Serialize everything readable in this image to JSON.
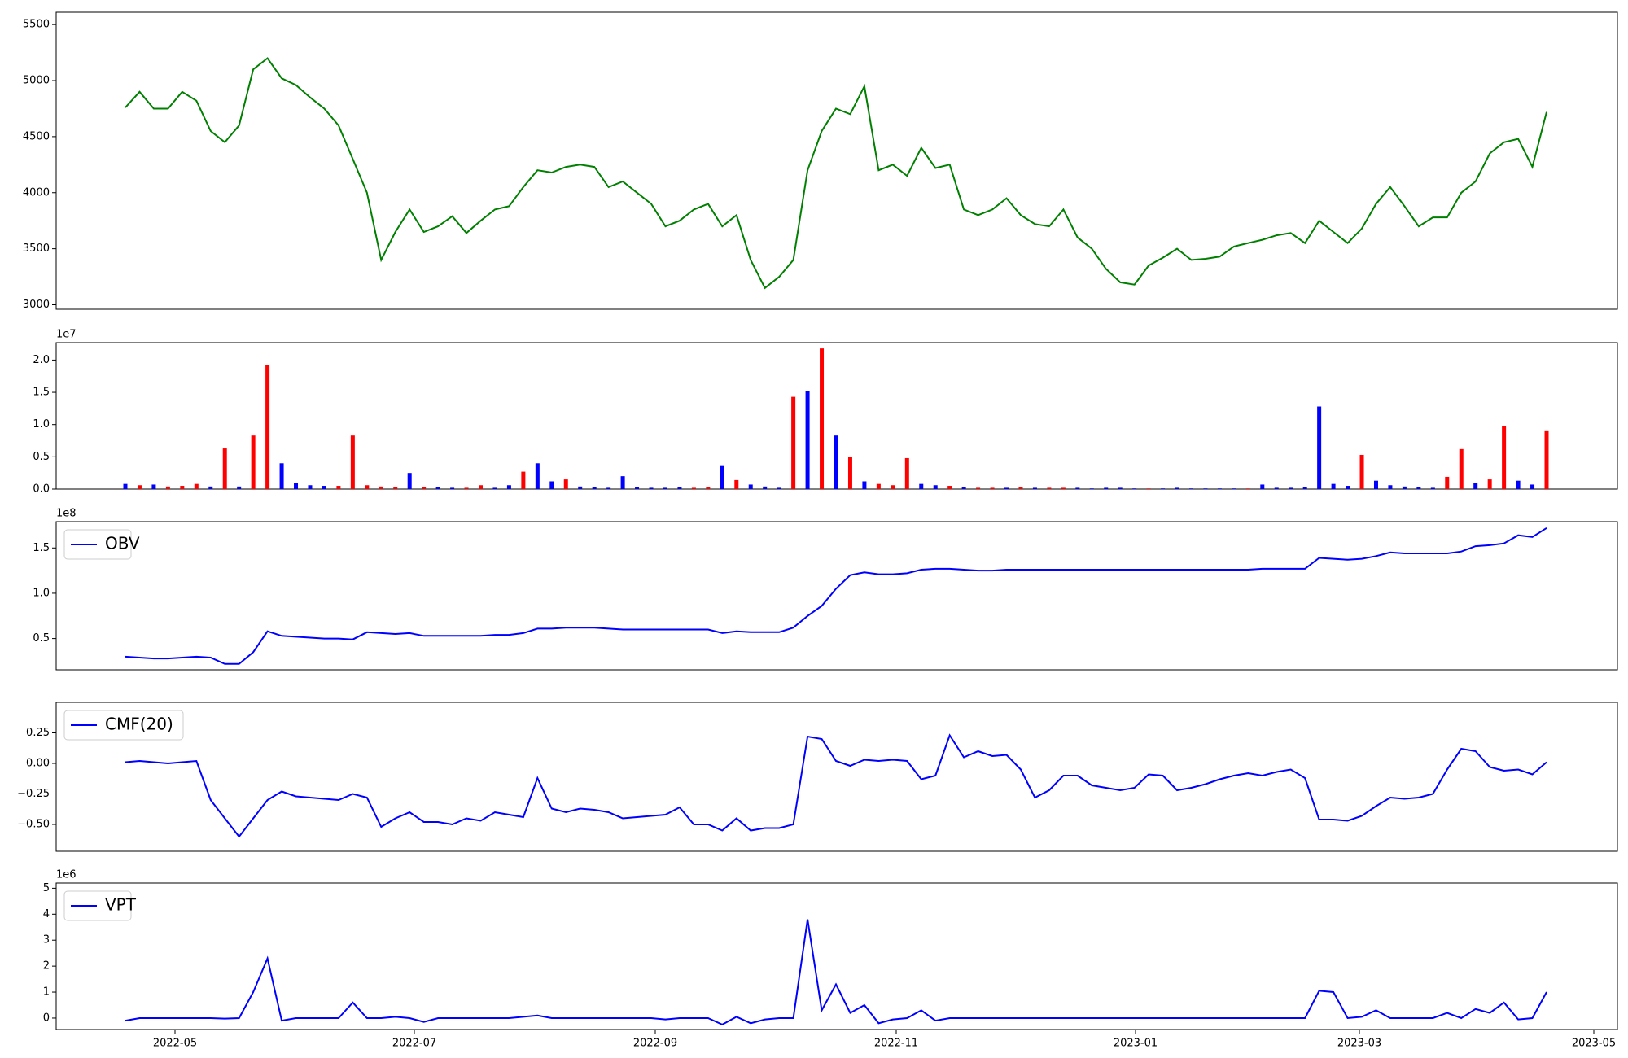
{
  "chart_data": [
    {
      "type": "line",
      "color": "#008000",
      "values": [
        4760,
        4900,
        4750,
        4750,
        4900,
        4820,
        4550,
        4450,
        4600,
        5100,
        5200,
        5020,
        4960,
        4850,
        4750,
        4600,
        4300,
        4000,
        3400,
        3650,
        3850,
        3650,
        3700,
        3790,
        3640,
        3750,
        3850,
        3880,
        4050,
        4200,
        4180,
        4230,
        4250,
        4230,
        4050,
        4100,
        4000,
        3900,
        3700,
        3750,
        3850,
        3900,
        3700,
        3800,
        3400,
        3150,
        3250,
        3400,
        4200,
        4550,
        4750,
        4700,
        4950,
        4200,
        4250,
        4150,
        4400,
        4220,
        4250,
        3850,
        3800,
        3850,
        3950,
        3800,
        3720,
        3700,
        3850,
        3600,
        3500,
        3320,
        3200,
        3180,
        3350,
        3420,
        3500,
        3400,
        3410,
        3430,
        3520,
        3550,
        3580,
        3620,
        3640,
        3550,
        3750,
        3650,
        3550,
        3680,
        3900,
        4050,
        3880,
        3700,
        3780,
        3780,
        4000,
        4100,
        4350,
        4450,
        4480,
        4230,
        4720
      ],
      "ylim": [
        2960,
        5610
      ],
      "yticks": [
        3000,
        3500,
        4000,
        4500,
        5000,
        5500
      ]
    },
    {
      "type": "bar",
      "y_offset_label": "1e7",
      "values": [
        0.08,
        0.06,
        0.07,
        0.04,
        0.05,
        0.08,
        0.04,
        0.63,
        0.04,
        0.83,
        1.92,
        0.4,
        0.1,
        0.06,
        0.05,
        0.05,
        0.83,
        0.06,
        0.04,
        0.03,
        0.25,
        0.03,
        0.03,
        0.02,
        0.02,
        0.06,
        0.02,
        0.06,
        0.27,
        0.4,
        0.12,
        0.15,
        0.04,
        0.03,
        0.02,
        0.2,
        0.03,
        0.02,
        0.02,
        0.03,
        0.02,
        0.03,
        0.37,
        0.14,
        0.07,
        0.04,
        0.02,
        1.43,
        1.52,
        2.18,
        0.83,
        0.5,
        0.12,
        0.08,
        0.06,
        0.48,
        0.08,
        0.06,
        0.05,
        0.03,
        0.02,
        0.02,
        0.02,
        0.03,
        0.02,
        0.02,
        0.02,
        0.02,
        0.01,
        0.02,
        0.02,
        0.01,
        0.01,
        0.01,
        0.02,
        0.01,
        0.01,
        0.01,
        0.01,
        0.01,
        0.07,
        0.02,
        0.02,
        0.03,
        1.28,
        0.08,
        0.05,
        0.53,
        0.13,
        0.06,
        0.04,
        0.03,
        0.02,
        0.19,
        0.62,
        0.1,
        0.15,
        0.98,
        0.13,
        0.07,
        0.91
      ],
      "colors": [
        "blue",
        "red",
        "blue",
        "red",
        "red",
        "red",
        "blue",
        "red",
        "blue",
        "red",
        "red",
        "blue",
        "blue",
        "blue",
        "blue",
        "red",
        "red",
        "red",
        "red",
        "red",
        "blue",
        "red",
        "blue",
        "blue",
        "red",
        "red",
        "blue",
        "blue",
        "red",
        "blue",
        "blue",
        "red",
        "blue",
        "blue",
        "blue",
        "blue",
        "blue",
        "blue",
        "blue",
        "blue",
        "red",
        "red",
        "blue",
        "red",
        "blue",
        "blue",
        "blue",
        "red",
        "blue",
        "red",
        "blue",
        "red",
        "blue",
        "red",
        "red",
        "red",
        "blue",
        "blue",
        "red",
        "blue",
        "red",
        "red",
        "blue",
        "red",
        "blue",
        "red",
        "red",
        "blue",
        "blue",
        "blue",
        "blue",
        "blue",
        "red",
        "blue",
        "blue",
        "blue",
        "blue",
        "blue",
        "blue",
        "red",
        "blue",
        "blue",
        "blue",
        "blue",
        "blue",
        "blue",
        "blue",
        "red",
        "blue",
        "blue",
        "blue",
        "blue",
        "blue",
        "red",
        "red",
        "blue",
        "red",
        "red",
        "blue",
        "blue",
        "red"
      ],
      "ylim": [
        0,
        2.27
      ],
      "yticks": [
        {
          "value": 0,
          "label": "0.0"
        },
        0.5,
        {
          "value": 1,
          "label": "1.0"
        },
        1.5,
        {
          "value": 2,
          "label": "2.0"
        }
      ]
    },
    {
      "type": "line",
      "y_offset_label": "1e8",
      "legend": "upper left",
      "series": [
        {
          "name": "OBV",
          "color": "blue",
          "values": [
            0.3,
            0.29,
            0.28,
            0.28,
            0.29,
            0.3,
            0.29,
            0.22,
            0.22,
            0.35,
            0.58,
            0.53,
            0.52,
            0.51,
            0.5,
            0.5,
            0.49,
            0.57,
            0.56,
            0.55,
            0.56,
            0.53,
            0.53,
            0.53,
            0.53,
            0.53,
            0.54,
            0.54,
            0.56,
            0.61,
            0.61,
            0.62,
            0.62,
            0.62,
            0.61,
            0.6,
            0.6,
            0.6,
            0.6,
            0.6,
            0.6,
            0.6,
            0.56,
            0.58,
            0.57,
            0.57,
            0.57,
            0.62,
            0.75,
            0.86,
            1.05,
            1.2,
            1.23,
            1.21,
            1.21,
            1.22,
            1.26,
            1.27,
            1.27,
            1.26,
            1.25,
            1.25,
            1.26,
            1.26,
            1.26,
            1.26,
            1.26,
            1.26,
            1.26,
            1.26,
            1.26,
            1.26,
            1.26,
            1.26,
            1.26,
            1.26,
            1.26,
            1.26,
            1.26,
            1.26,
            1.27,
            1.27,
            1.27,
            1.27,
            1.39,
            1.38,
            1.37,
            1.38,
            1.41,
            1.45,
            1.44,
            1.44,
            1.44,
            1.44,
            1.46,
            1.52,
            1.53,
            1.55,
            1.64,
            1.62,
            1.72
          ]
        }
      ],
      "ylim": [
        0.155,
        1.79
      ],
      "yticks": [
        0.5,
        {
          "value": 1,
          "label": "1.0"
        },
        1.5
      ]
    },
    {
      "type": "line",
      "legend": "upper left",
      "series": [
        {
          "name": "CMF(20)",
          "color": "blue",
          "values": [
            0.01,
            0.02,
            0.01,
            0.0,
            0.01,
            0.02,
            -0.3,
            -0.45,
            -0.6,
            -0.45,
            -0.3,
            -0.23,
            -0.27,
            -0.28,
            -0.29,
            -0.3,
            -0.25,
            -0.28,
            -0.52,
            -0.45,
            -0.4,
            -0.48,
            -0.48,
            -0.5,
            -0.45,
            -0.47,
            -0.4,
            -0.42,
            -0.44,
            -0.12,
            -0.37,
            -0.4,
            -0.37,
            -0.38,
            -0.4,
            -0.45,
            -0.44,
            -0.43,
            -0.42,
            -0.36,
            -0.5,
            -0.5,
            -0.55,
            -0.45,
            -0.55,
            -0.53,
            -0.53,
            -0.5,
            0.22,
            0.2,
            0.02,
            -0.02,
            0.03,
            0.02,
            0.03,
            0.02,
            -0.13,
            -0.1,
            0.23,
            0.05,
            0.1,
            0.06,
            0.07,
            -0.05,
            -0.28,
            -0.22,
            -0.1,
            -0.1,
            -0.18,
            -0.2,
            -0.22,
            -0.2,
            -0.09,
            -0.1,
            -0.22,
            -0.2,
            -0.17,
            -0.13,
            -0.1,
            -0.08,
            -0.1,
            -0.07,
            -0.05,
            -0.12,
            -0.46,
            -0.46,
            -0.47,
            -0.43,
            -0.35,
            -0.28,
            -0.29,
            -0.28,
            -0.25,
            -0.05,
            0.12,
            0.1,
            -0.03,
            -0.06,
            -0.05,
            -0.09,
            0.01
          ]
        }
      ],
      "ylim": [
        -0.72,
        0.5
      ],
      "yticks": [
        {
          "value": -0.5,
          "label": "−0.50"
        },
        {
          "value": -0.25,
          "label": "−0.25"
        },
        {
          "value": 0,
          "label": "0.00"
        },
        0.25
      ]
    },
    {
      "type": "line",
      "y_offset_label": "1e6",
      "legend": "upper left",
      "series": [
        {
          "name": "VPT",
          "color": "blue",
          "values": [
            -0.1,
            0.0,
            0.0,
            0.0,
            0.0,
            0.0,
            0.0,
            -0.02,
            0.0,
            1.0,
            2.3,
            -0.1,
            0.0,
            0.0,
            0.0,
            0.0,
            0.6,
            0.0,
            0.0,
            0.05,
            0.0,
            -0.15,
            0.0,
            0.0,
            0.0,
            0.0,
            0.0,
            0.0,
            0.05,
            0.1,
            0.0,
            0.0,
            0.0,
            0.0,
            0.0,
            0.0,
            0.0,
            0.0,
            -0.05,
            0.0,
            0.0,
            0.0,
            -0.25,
            0.05,
            -0.2,
            -0.05,
            0.0,
            0.0,
            3.8,
            0.3,
            1.3,
            0.2,
            0.5,
            -0.2,
            -0.05,
            0.0,
            0.3,
            -0.1,
            0.0,
            0.0,
            0.0,
            0.0,
            0.0,
            0.0,
            0.0,
            0.0,
            0.0,
            0.0,
            0.0,
            0.0,
            0.0,
            0.0,
            0.0,
            0.0,
            0.0,
            0.0,
            0.0,
            0.0,
            0.0,
            0.0,
            0.0,
            0.0,
            0.0,
            0.0,
            1.05,
            1.0,
            0.0,
            0.05,
            0.3,
            0.0,
            0.0,
            0.0,
            0.0,
            0.2,
            0.0,
            0.35,
            0.2,
            0.6,
            -0.05,
            0.0,
            1.0
          ]
        }
      ],
      "ylim": [
        -0.44,
        5.2
      ],
      "yticks": [
        0,
        1,
        2,
        3,
        4,
        5
      ],
      "xticks": [
        "2022-05",
        "2022-07",
        "2022-09",
        "2022-11",
        "2023-01",
        "2023-03",
        "2023-05"
      ]
    }
  ]
}
